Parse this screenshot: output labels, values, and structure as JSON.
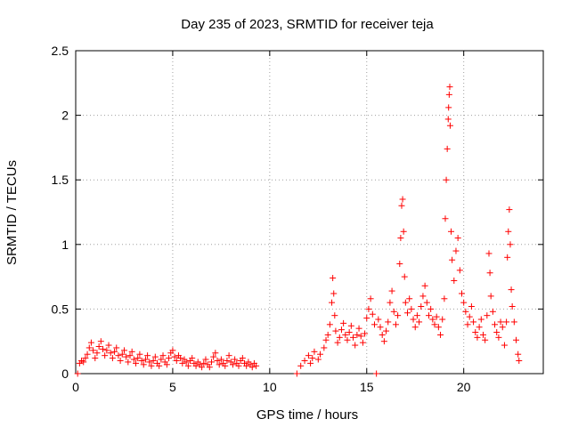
{
  "chart_data": {
    "type": "scatter",
    "title": "Day 235 of 2023, SRMTID for receiver teja",
    "xlabel": "GPS time / hours",
    "ylabel": "SRMTID / TECUs",
    "xlim": [
      0,
      24.1
    ],
    "ylim": [
      0,
      2.5
    ],
    "grid": true,
    "marker": "+",
    "color": "#ff0000",
    "xticks": [
      {
        "value": 0,
        "label": "0"
      },
      {
        "value": 5,
        "label": "5"
      },
      {
        "value": 10,
        "label": "10"
      },
      {
        "value": 15,
        "label": "15"
      },
      {
        "value": 20,
        "label": "20"
      }
    ],
    "yticks": [
      {
        "value": 0,
        "label": "0"
      },
      {
        "value": 0.5,
        "label": "0.5"
      },
      {
        "value": 1,
        "label": "1"
      },
      {
        "value": 1.5,
        "label": "1.5"
      },
      {
        "value": 2,
        "label": "2"
      },
      {
        "value": 2.5,
        "label": "2.5"
      }
    ],
    "points": [
      [
        0.1,
        0.0
      ],
      [
        0.2,
        0.08
      ],
      [
        0.3,
        0.1
      ],
      [
        0.4,
        0.09
      ],
      [
        0.5,
        0.12
      ],
      [
        0.6,
        0.15
      ],
      [
        0.7,
        0.2
      ],
      [
        0.8,
        0.24
      ],
      [
        0.9,
        0.18
      ],
      [
        1.0,
        0.12
      ],
      [
        1.1,
        0.16
      ],
      [
        1.2,
        0.21
      ],
      [
        1.3,
        0.25
      ],
      [
        1.4,
        0.19
      ],
      [
        1.5,
        0.14
      ],
      [
        1.6,
        0.18
      ],
      [
        1.7,
        0.22
      ],
      [
        1.8,
        0.16
      ],
      [
        1.9,
        0.12
      ],
      [
        2.0,
        0.17
      ],
      [
        2.1,
        0.2
      ],
      [
        2.2,
        0.14
      ],
      [
        2.3,
        0.1
      ],
      [
        2.4,
        0.15
      ],
      [
        2.5,
        0.18
      ],
      [
        2.6,
        0.13
      ],
      [
        2.7,
        0.09
      ],
      [
        2.8,
        0.14
      ],
      [
        2.9,
        0.17
      ],
      [
        3.0,
        0.11
      ],
      [
        3.1,
        0.08
      ],
      [
        3.2,
        0.12
      ],
      [
        3.3,
        0.15
      ],
      [
        3.4,
        0.1
      ],
      [
        3.5,
        0.07
      ],
      [
        3.6,
        0.11
      ],
      [
        3.7,
        0.14
      ],
      [
        3.8,
        0.09
      ],
      [
        3.9,
        0.06
      ],
      [
        4.0,
        0.1
      ],
      [
        4.1,
        0.13
      ],
      [
        4.2,
        0.08
      ],
      [
        4.3,
        0.06
      ],
      [
        4.4,
        0.11
      ],
      [
        4.5,
        0.14
      ],
      [
        4.6,
        0.09
      ],
      [
        4.7,
        0.07
      ],
      [
        4.8,
        0.12
      ],
      [
        4.9,
        0.16
      ],
      [
        5.0,
        0.18
      ],
      [
        5.1,
        0.13
      ],
      [
        5.2,
        0.1
      ],
      [
        5.3,
        0.14
      ],
      [
        5.4,
        0.12
      ],
      [
        5.5,
        0.08
      ],
      [
        5.6,
        0.11
      ],
      [
        5.7,
        0.09
      ],
      [
        5.8,
        0.06
      ],
      [
        5.9,
        0.1
      ],
      [
        6.0,
        0.12
      ],
      [
        6.1,
        0.08
      ],
      [
        6.2,
        0.06
      ],
      [
        6.3,
        0.09
      ],
      [
        6.4,
        0.07
      ],
      [
        6.5,
        0.05
      ],
      [
        6.6,
        0.08
      ],
      [
        6.7,
        0.11
      ],
      [
        6.8,
        0.07
      ],
      [
        6.9,
        0.05
      ],
      [
        7.0,
        0.09
      ],
      [
        7.1,
        0.13
      ],
      [
        7.2,
        0.16
      ],
      [
        7.3,
        0.1
      ],
      [
        7.4,
        0.07
      ],
      [
        7.5,
        0.11
      ],
      [
        7.6,
        0.08
      ],
      [
        7.7,
        0.06
      ],
      [
        7.8,
        0.1
      ],
      [
        7.9,
        0.14
      ],
      [
        8.0,
        0.09
      ],
      [
        8.1,
        0.07
      ],
      [
        8.2,
        0.11
      ],
      [
        8.3,
        0.08
      ],
      [
        8.4,
        0.06
      ],
      [
        8.5,
        0.1
      ],
      [
        8.6,
        0.12
      ],
      [
        8.7,
        0.08
      ],
      [
        8.8,
        0.06
      ],
      [
        8.9,
        0.09
      ],
      [
        9.0,
        0.07
      ],
      [
        9.1,
        0.05
      ],
      [
        9.2,
        0.08
      ],
      [
        9.3,
        0.06
      ],
      [
        11.4,
        0.0
      ],
      [
        11.6,
        0.06
      ],
      [
        11.8,
        0.1
      ],
      [
        12.0,
        0.14
      ],
      [
        12.1,
        0.08
      ],
      [
        12.2,
        0.12
      ],
      [
        12.3,
        0.17
      ],
      [
        12.5,
        0.11
      ],
      [
        12.6,
        0.15
      ],
      [
        12.8,
        0.2
      ],
      [
        12.9,
        0.26
      ],
      [
        13.0,
        0.3
      ],
      [
        13.1,
        0.38
      ],
      [
        13.2,
        0.55
      ],
      [
        13.25,
        0.74
      ],
      [
        13.3,
        0.62
      ],
      [
        13.35,
        0.45
      ],
      [
        13.4,
        0.33
      ],
      [
        13.5,
        0.24
      ],
      [
        13.6,
        0.28
      ],
      [
        13.7,
        0.34
      ],
      [
        13.8,
        0.39
      ],
      [
        13.9,
        0.3
      ],
      [
        14.0,
        0.26
      ],
      [
        14.1,
        0.32
      ],
      [
        14.2,
        0.37
      ],
      [
        14.3,
        0.28
      ],
      [
        14.4,
        0.22
      ],
      [
        14.5,
        0.3
      ],
      [
        14.6,
        0.35
      ],
      [
        14.7,
        0.29
      ],
      [
        14.8,
        0.24
      ],
      [
        14.9,
        0.31
      ],
      [
        15.0,
        0.43
      ],
      [
        15.1,
        0.5
      ],
      [
        15.2,
        0.58
      ],
      [
        15.3,
        0.46
      ],
      [
        15.4,
        0.38
      ],
      [
        15.5,
        0.0
      ],
      [
        15.6,
        0.42
      ],
      [
        15.7,
        0.36
      ],
      [
        15.8,
        0.3
      ],
      [
        15.9,
        0.25
      ],
      [
        16.0,
        0.33
      ],
      [
        16.1,
        0.4
      ],
      [
        16.2,
        0.55
      ],
      [
        16.3,
        0.64
      ],
      [
        16.4,
        0.48
      ],
      [
        16.5,
        0.38
      ],
      [
        16.6,
        0.45
      ],
      [
        16.7,
        0.85
      ],
      [
        16.75,
        1.05
      ],
      [
        16.8,
        1.3
      ],
      [
        16.85,
        1.35
      ],
      [
        16.9,
        1.1
      ],
      [
        16.95,
        0.75
      ],
      [
        17.0,
        0.55
      ],
      [
        17.1,
        0.47
      ],
      [
        17.2,
        0.58
      ],
      [
        17.3,
        0.5
      ],
      [
        17.4,
        0.42
      ],
      [
        17.5,
        0.36
      ],
      [
        17.6,
        0.45
      ],
      [
        17.7,
        0.4
      ],
      [
        17.8,
        0.52
      ],
      [
        17.9,
        0.6
      ],
      [
        18.0,
        0.68
      ],
      [
        18.1,
        0.55
      ],
      [
        18.2,
        0.45
      ],
      [
        18.3,
        0.5
      ],
      [
        18.4,
        0.42
      ],
      [
        18.5,
        0.38
      ],
      [
        18.6,
        0.44
      ],
      [
        18.7,
        0.36
      ],
      [
        18.8,
        0.3
      ],
      [
        18.9,
        0.42
      ],
      [
        19.0,
        0.58
      ],
      [
        19.05,
        1.2
      ],
      [
        19.1,
        1.5
      ],
      [
        19.15,
        1.74
      ],
      [
        19.2,
        1.97
      ],
      [
        19.22,
        2.06
      ],
      [
        19.25,
        2.16
      ],
      [
        19.28,
        2.22
      ],
      [
        19.3,
        1.92
      ],
      [
        19.35,
        1.1
      ],
      [
        19.4,
        0.88
      ],
      [
        19.5,
        0.72
      ],
      [
        19.6,
        0.95
      ],
      [
        19.7,
        1.05
      ],
      [
        19.8,
        0.8
      ],
      [
        19.9,
        0.62
      ],
      [
        20.0,
        0.55
      ],
      [
        20.1,
        0.48
      ],
      [
        20.2,
        0.38
      ],
      [
        20.3,
        0.44
      ],
      [
        20.4,
        0.52
      ],
      [
        20.5,
        0.4
      ],
      [
        20.6,
        0.32
      ],
      [
        20.7,
        0.28
      ],
      [
        20.8,
        0.36
      ],
      [
        20.9,
        0.42
      ],
      [
        21.0,
        0.3
      ],
      [
        21.1,
        0.26
      ],
      [
        21.2,
        0.45
      ],
      [
        21.3,
        0.93
      ],
      [
        21.35,
        0.78
      ],
      [
        21.4,
        0.6
      ],
      [
        21.5,
        0.48
      ],
      [
        21.6,
        0.38
      ],
      [
        21.7,
        0.32
      ],
      [
        21.8,
        0.28
      ],
      [
        21.9,
        0.4
      ],
      [
        22.0,
        0.36
      ],
      [
        22.1,
        0.22
      ],
      [
        22.2,
        0.4
      ],
      [
        22.25,
        0.9
      ],
      [
        22.3,
        1.1
      ],
      [
        22.35,
        1.27
      ],
      [
        22.4,
        1.0
      ],
      [
        22.45,
        0.65
      ],
      [
        22.5,
        0.52
      ],
      [
        22.6,
        0.4
      ],
      [
        22.7,
        0.26
      ],
      [
        22.8,
        0.15
      ],
      [
        22.85,
        0.1
      ]
    ]
  }
}
